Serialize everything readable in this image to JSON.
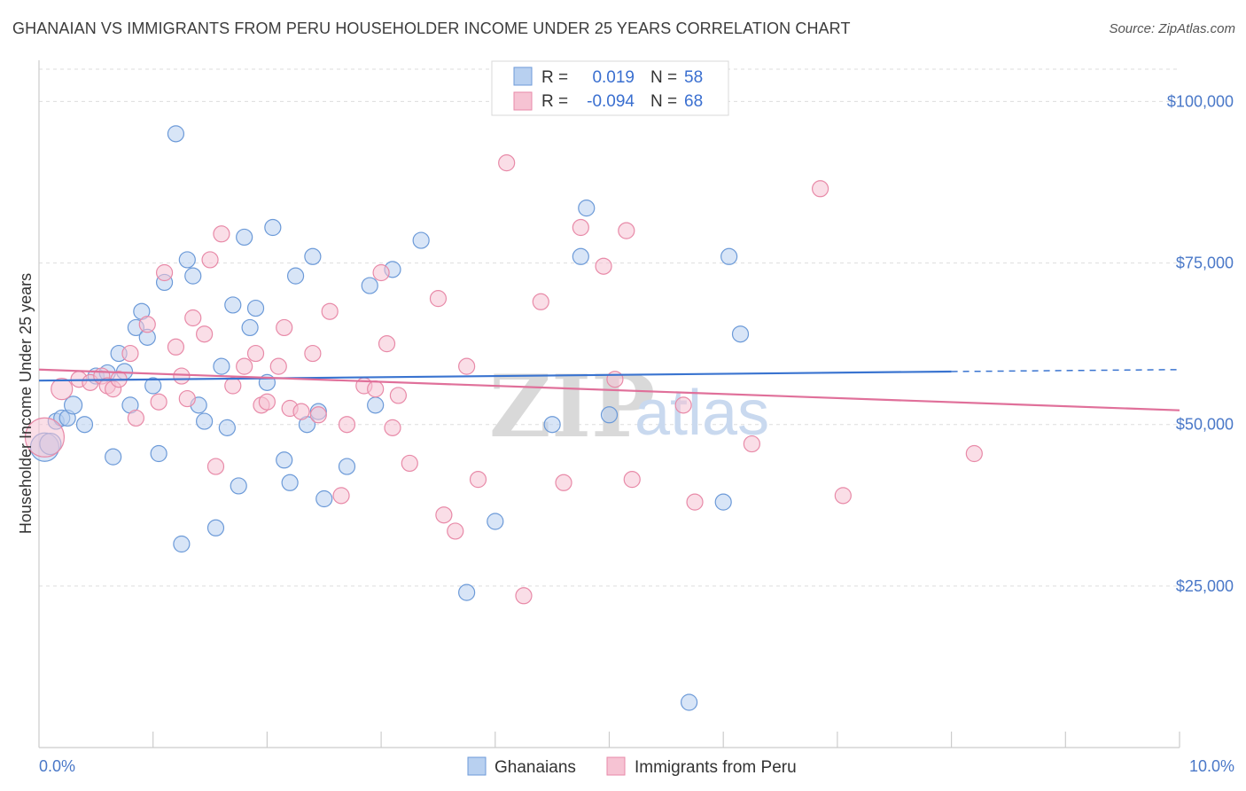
{
  "title": "GHANAIAN VS IMMIGRANTS FROM PERU HOUSEHOLDER INCOME UNDER 25 YEARS CORRELATION CHART",
  "source": "Source: ZipAtlas.com",
  "watermark": {
    "zip": "ZIP",
    "atlas": "atlas"
  },
  "colors": {
    "blue_fill": "#b8d0f0",
    "blue_stroke": "#6c9ad8",
    "blue_line": "#3a74d0",
    "pink_fill": "#f6c3d3",
    "pink_stroke": "#e88aa8",
    "pink_line": "#e0709a",
    "grid": "#dddddd",
    "tick_text": "#4a78c8"
  },
  "stats_box": {
    "rows": [
      {
        "r_label": "R =",
        "r_value": "0.019",
        "n_label": "N =",
        "n_value": "58",
        "series": "blue"
      },
      {
        "r_label": "R =",
        "r_value": "-0.094",
        "n_label": "N =",
        "n_value": "68",
        "series": "pink"
      }
    ]
  },
  "chart_data": {
    "type": "scatter",
    "title": "GHANAIAN VS IMMIGRANTS FROM PERU HOUSEHOLDER INCOME UNDER 25 YEARS CORRELATION CHART",
    "xlabel": "",
    "ylabel": "Householder Income Under 25 years",
    "xlim": [
      0,
      10
    ],
    "ylim": [
      0,
      105000
    ],
    "x_tick_labels": [
      {
        "value": 0,
        "label": "0.0%"
      },
      {
        "value": 10,
        "label": "10.0%"
      }
    ],
    "x_minor_ticks": [
      1,
      2,
      3,
      4,
      5,
      6,
      7,
      8,
      9,
      10
    ],
    "y_ticks": [
      {
        "value": 25000,
        "label": "$25,000"
      },
      {
        "value": 50000,
        "label": "$50,000"
      },
      {
        "value": 75000,
        "label": "$75,000"
      },
      {
        "value": 100000,
        "label": "$100,000"
      }
    ],
    "grid": true,
    "legend_position": "bottom",
    "series": [
      {
        "name": "Ghanaians",
        "color": "blue",
        "trend": {
          "x0": 0,
          "y0": 56800,
          "x1": 8,
          "y1": 58200,
          "dash_x1": 10,
          "dash_y1": 58500
        },
        "points": [
          [
            0.05,
            46500,
            16
          ],
          [
            0.1,
            47000,
            12
          ],
          [
            0.15,
            50500,
            9
          ],
          [
            0.2,
            51000,
            9
          ],
          [
            0.25,
            51000,
            9
          ],
          [
            0.3,
            53000,
            10
          ],
          [
            0.4,
            50000,
            9
          ],
          [
            0.5,
            57500,
            9
          ],
          [
            0.6,
            58000,
            9
          ],
          [
            0.65,
            45000,
            9
          ],
          [
            0.7,
            61000,
            9
          ],
          [
            0.75,
            58200,
            9
          ],
          [
            0.8,
            53000,
            9
          ],
          [
            0.85,
            65000,
            9
          ],
          [
            0.9,
            67500,
            9
          ],
          [
            0.95,
            63500,
            9
          ],
          [
            1.0,
            56000,
            9
          ],
          [
            1.05,
            45500,
            9
          ],
          [
            1.1,
            72000,
            9
          ],
          [
            1.2,
            95000,
            9
          ],
          [
            1.25,
            31500,
            9
          ],
          [
            1.3,
            75500,
            9
          ],
          [
            1.35,
            73000,
            9
          ],
          [
            1.4,
            53000,
            9
          ],
          [
            1.45,
            50500,
            9
          ],
          [
            1.55,
            34000,
            9
          ],
          [
            1.6,
            59000,
            9
          ],
          [
            1.65,
            49500,
            9
          ],
          [
            1.7,
            68500,
            9
          ],
          [
            1.75,
            40500,
            9
          ],
          [
            1.8,
            79000,
            9
          ],
          [
            1.85,
            65000,
            9
          ],
          [
            1.9,
            68000,
            9
          ],
          [
            2.0,
            56500,
            9
          ],
          [
            2.05,
            80500,
            9
          ],
          [
            2.15,
            44500,
            9
          ],
          [
            2.2,
            41000,
            9
          ],
          [
            2.25,
            73000,
            9
          ],
          [
            2.35,
            50000,
            9
          ],
          [
            2.4,
            76000,
            9
          ],
          [
            2.45,
            52000,
            9
          ],
          [
            2.5,
            38500,
            9
          ],
          [
            2.7,
            43500,
            9
          ],
          [
            2.9,
            71500,
            9
          ],
          [
            2.95,
            53000,
            9
          ],
          [
            3.1,
            74000,
            9
          ],
          [
            3.35,
            78500,
            9
          ],
          [
            3.75,
            24000,
            9
          ],
          [
            4.0,
            35000,
            9
          ],
          [
            4.5,
            50000,
            9
          ],
          [
            4.75,
            76000,
            9
          ],
          [
            4.8,
            83500,
            9
          ],
          [
            5.0,
            51500,
            9
          ],
          [
            5.7,
            7000,
            9
          ],
          [
            6.0,
            38000,
            9
          ],
          [
            6.05,
            76000,
            9
          ],
          [
            6.15,
            64000,
            9
          ]
        ]
      },
      {
        "name": "Immigrants from Peru",
        "color": "pink",
        "trend": {
          "x0": 0,
          "y0": 58500,
          "x1": 10,
          "y1": 52200
        },
        "points": [
          [
            0.05,
            48000,
            22
          ],
          [
            0.2,
            55500,
            12
          ],
          [
            0.35,
            57000,
            9
          ],
          [
            0.45,
            56500,
            9
          ],
          [
            0.55,
            57500,
            9
          ],
          [
            0.6,
            56000,
            9
          ],
          [
            0.65,
            55500,
            9
          ],
          [
            0.7,
            57000,
            9
          ],
          [
            0.8,
            61000,
            9
          ],
          [
            0.85,
            51000,
            9
          ],
          [
            0.95,
            65500,
            9
          ],
          [
            1.05,
            53500,
            9
          ],
          [
            1.1,
            73500,
            9
          ],
          [
            1.2,
            62000,
            9
          ],
          [
            1.25,
            57500,
            9
          ],
          [
            1.3,
            54000,
            9
          ],
          [
            1.35,
            66500,
            9
          ],
          [
            1.45,
            64000,
            9
          ],
          [
            1.5,
            75500,
            9
          ],
          [
            1.55,
            43500,
            9
          ],
          [
            1.6,
            79500,
            9
          ],
          [
            1.7,
            56000,
            9
          ],
          [
            1.8,
            59000,
            9
          ],
          [
            1.9,
            61000,
            9
          ],
          [
            1.95,
            53000,
            9
          ],
          [
            2.0,
            53500,
            9
          ],
          [
            2.1,
            59000,
            9
          ],
          [
            2.15,
            65000,
            9
          ],
          [
            2.2,
            52500,
            9
          ],
          [
            2.3,
            52000,
            9
          ],
          [
            2.4,
            61000,
            9
          ],
          [
            2.45,
            51500,
            9
          ],
          [
            2.55,
            67500,
            9
          ],
          [
            2.65,
            39000,
            9
          ],
          [
            2.7,
            50000,
            9
          ],
          [
            2.85,
            56000,
            9
          ],
          [
            2.95,
            55500,
            9
          ],
          [
            3.0,
            73500,
            9
          ],
          [
            3.05,
            62500,
            9
          ],
          [
            3.1,
            49500,
            9
          ],
          [
            3.15,
            54500,
            9
          ],
          [
            3.25,
            44000,
            9
          ],
          [
            3.5,
            69500,
            9
          ],
          [
            3.55,
            36000,
            9
          ],
          [
            3.65,
            33500,
            9
          ],
          [
            3.75,
            59000,
            9
          ],
          [
            3.85,
            41500,
            9
          ],
          [
            4.1,
            90500,
            9
          ],
          [
            4.25,
            23500,
            9
          ],
          [
            4.4,
            69000,
            9
          ],
          [
            4.6,
            41000,
            9
          ],
          [
            4.75,
            80500,
            9
          ],
          [
            4.95,
            74500,
            9
          ],
          [
            5.05,
            57000,
            9
          ],
          [
            5.15,
            80000,
            9
          ],
          [
            5.2,
            41500,
            9
          ],
          [
            5.65,
            53000,
            9
          ],
          [
            5.75,
            38000,
            9
          ],
          [
            6.25,
            47000,
            9
          ],
          [
            6.85,
            86500,
            9
          ],
          [
            7.05,
            39000,
            9
          ],
          [
            8.2,
            45500,
            9
          ]
        ]
      }
    ]
  }
}
